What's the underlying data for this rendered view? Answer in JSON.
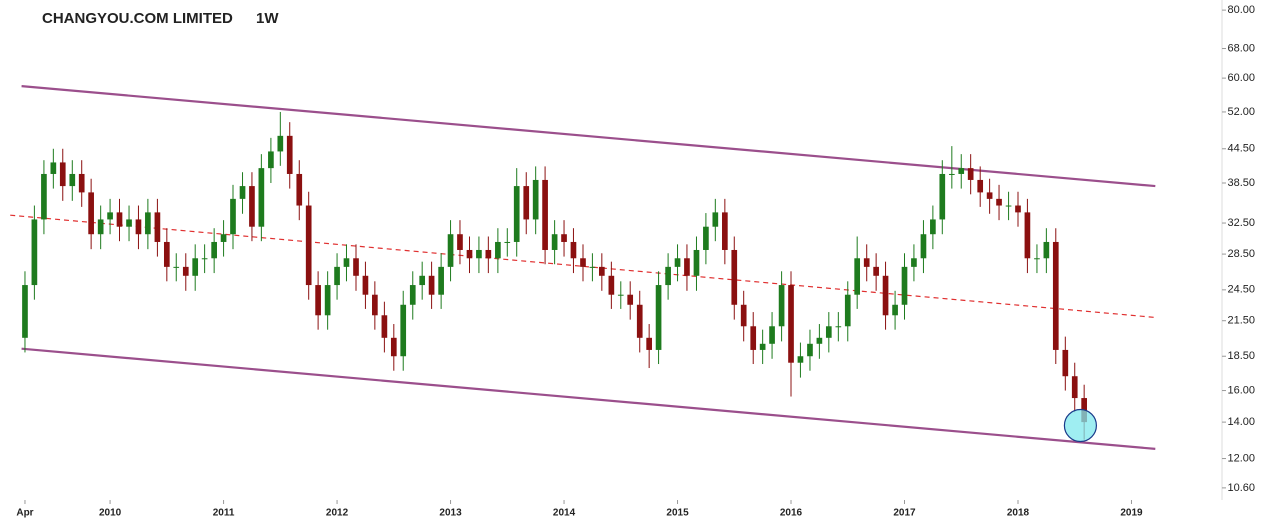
{
  "chart_data": {
    "type": "candlestick",
    "title": "CHANGYOU.COM LIMITED",
    "subtitle": "1W",
    "log_scale": true,
    "grid": false,
    "up_color": "#1e7b1e",
    "down_color": "#8b1010",
    "xlim": [
      2009.03,
      2019.78
    ],
    "xticks": [
      {
        "value": 2009.25,
        "label": "Apr"
      },
      2010,
      2011,
      2012,
      2013,
      2014,
      2015,
      2016,
      2017,
      2018,
      2019
    ],
    "ylim": [
      10.07,
      83.5
    ],
    "yticks": [
      {
        "value": 10.6,
        "label": "10.60"
      },
      {
        "value": 12,
        "label": "12.00"
      },
      {
        "value": 14,
        "label": "14.00"
      },
      {
        "value": 16,
        "label": "16.00"
      },
      {
        "value": 18.5,
        "label": "18.50"
      },
      {
        "value": 21.5,
        "label": "21.50"
      },
      {
        "value": 24.5,
        "label": "24.50"
      },
      {
        "value": 28.5,
        "label": "28.50"
      },
      {
        "value": 32.5,
        "label": "32.50"
      },
      {
        "value": 38.5,
        "label": "38.50"
      },
      {
        "value": 44.5,
        "label": "44.50"
      },
      {
        "value": 52,
        "label": "52.00"
      },
      {
        "value": 60,
        "label": "60.00"
      },
      {
        "value": 68,
        "label": "68.00"
      },
      {
        "value": 80,
        "label": "80.00"
      }
    ],
    "x": [
      2009.25,
      2009.333,
      2009.417,
      2009.5,
      2009.583,
      2009.667,
      2009.75,
      2009.833,
      2009.917,
      2010,
      2010.083,
      2010.167,
      2010.25,
      2010.333,
      2010.417,
      2010.5,
      2010.583,
      2010.667,
      2010.75,
      2010.833,
      2010.917,
      2011,
      2011.083,
      2011.167,
      2011.25,
      2011.333,
      2011.417,
      2011.5,
      2011.583,
      2011.667,
      2011.75,
      2011.833,
      2011.917,
      2012,
      2012.083,
      2012.167,
      2012.25,
      2012.333,
      2012.417,
      2012.5,
      2012.583,
      2012.667,
      2012.75,
      2012.833,
      2012.917,
      2013,
      2013.083,
      2013.167,
      2013.25,
      2013.333,
      2013.417,
      2013.5,
      2013.583,
      2013.667,
      2013.75,
      2013.833,
      2013.917,
      2014,
      2014.083,
      2014.167,
      2014.25,
      2014.333,
      2014.417,
      2014.5,
      2014.583,
      2014.667,
      2014.75,
      2014.833,
      2014.917,
      2015,
      2015.083,
      2015.167,
      2015.25,
      2015.333,
      2015.417,
      2015.5,
      2015.583,
      2015.667,
      2015.75,
      2015.833,
      2015.917,
      2016,
      2016.083,
      2016.167,
      2016.25,
      2016.333,
      2016.417,
      2016.5,
      2016.583,
      2016.667,
      2016.75,
      2016.833,
      2016.917,
      2017,
      2017.083,
      2017.167,
      2017.25,
      2017.333,
      2017.417,
      2017.5,
      2017.583,
      2017.667,
      2017.75,
      2017.833,
      2017.917,
      2018,
      2018.083,
      2018.167,
      2018.25,
      2018.333,
      2018.417,
      2018.5,
      2018.583
    ],
    "open": [
      20,
      25,
      33,
      40,
      42,
      38,
      40,
      37,
      31,
      33,
      34,
      32,
      33,
      31,
      34,
      30,
      27,
      27,
      26,
      28,
      28,
      30,
      31,
      36,
      38,
      32,
      41,
      44,
      47,
      40,
      35,
      25,
      22,
      25,
      27,
      28,
      26,
      24,
      22,
      20,
      18.5,
      23,
      25,
      26,
      24,
      27,
      31,
      29,
      28,
      29,
      28,
      30,
      30,
      38,
      33,
      39,
      29,
      31,
      30,
      28,
      27,
      27,
      26,
      24,
      24,
      23,
      20,
      19,
      25,
      27,
      28,
      26,
      29,
      32,
      34,
      29,
      23,
      21,
      19,
      19.5,
      21,
      25,
      18,
      18.5,
      19.5,
      20,
      21,
      21,
      24,
      28,
      27,
      26,
      22,
      23,
      27,
      28,
      31,
      33,
      40,
      40,
      41,
      39,
      37,
      36,
      35,
      35,
      34,
      28,
      28,
      30,
      19,
      17,
      15.5
    ],
    "high": [
      26.5,
      35,
      42.4,
      44.5,
      44.5,
      42.4,
      42.4,
      39.2,
      35,
      36,
      36,
      35,
      35,
      36,
      36,
      31.8,
      28.6,
      28.6,
      29.7,
      29.7,
      31.8,
      32.9,
      38.2,
      40.3,
      40.3,
      43.5,
      46.6,
      52,
      49.8,
      42.4,
      37.1,
      26.5,
      26.5,
      28.6,
      29.7,
      29.7,
      27.6,
      25.4,
      23.3,
      21.2,
      24.4,
      26.5,
      27.6,
      27.6,
      28.6,
      32.9,
      32.9,
      30.7,
      30.7,
      30.7,
      31.8,
      31.8,
      41,
      40.3,
      41.3,
      41.3,
      32.9,
      32.9,
      31.8,
      29.7,
      28.6,
      28.6,
      27.6,
      25.4,
      25.4,
      24.4,
      21.2,
      26.5,
      28.6,
      29.7,
      29.7,
      30.7,
      33.9,
      36,
      36,
      30.7,
      24.4,
      22.3,
      20.7,
      22.3,
      26.5,
      26.5,
      19.6,
      20.7,
      21.2,
      22.3,
      22.3,
      25.4,
      30.7,
      29.7,
      28.6,
      27.6,
      24.4,
      28.6,
      29.7,
      32.9,
      35,
      42.4,
      45,
      43.5,
      43.5,
      41.3,
      39.2,
      38.2,
      37.1,
      37.1,
      36,
      29.7,
      31.8,
      31.8,
      20.1,
      18,
      16.4
    ],
    "low": [
      18.8,
      23.5,
      31,
      37.6,
      35.7,
      35.7,
      34.8,
      29.1,
      29.1,
      31,
      30.1,
      30.1,
      29.1,
      29.1,
      28.2,
      25.4,
      25.4,
      24.4,
      24.4,
      26.3,
      26.3,
      28.2,
      29.1,
      33.8,
      30.1,
      30.1,
      38.5,
      41.4,
      37.6,
      32.9,
      23.5,
      20.7,
      20.7,
      23.5,
      25.4,
      24.4,
      22.6,
      20.7,
      18.8,
      17.4,
      17.4,
      21.6,
      23.5,
      22.6,
      22.6,
      25.4,
      27.3,
      26.3,
      26.3,
      26.3,
      26.3,
      28.2,
      28.2,
      31,
      31,
      27.3,
      27.3,
      28.2,
      26.3,
      25.4,
      25.4,
      24.4,
      22.6,
      22.6,
      21.6,
      18.8,
      17.6,
      17.9,
      23.5,
      25.4,
      24.4,
      24.4,
      27.3,
      30.1,
      27.3,
      21.6,
      19.7,
      17.9,
      17.9,
      18.3,
      19.7,
      15.6,
      16.9,
      17.4,
      18.3,
      18.8,
      19.7,
      19.7,
      22.6,
      25.4,
      24.4,
      20.7,
      20.7,
      21.6,
      25.4,
      26.3,
      29.1,
      31,
      37.6,
      37.6,
      36.7,
      34.8,
      33.8,
      32.9,
      32.9,
      32,
      26.3,
      26.3,
      26.3,
      17.9,
      16,
      14.6,
      13
    ],
    "close": [
      25,
      33,
      40,
      42,
      38,
      40,
      37,
      31,
      33,
      34,
      32,
      33,
      31,
      34,
      30,
      27,
      27,
      26,
      28,
      28,
      30,
      31,
      36,
      38,
      32,
      41,
      44,
      47,
      40,
      35,
      25,
      22,
      25,
      27,
      28,
      26,
      24,
      22,
      20,
      18.5,
      23,
      25,
      26,
      24,
      27,
      31,
      29,
      28,
      29,
      28,
      30,
      30,
      38,
      33,
      39,
      29,
      31,
      30,
      28,
      27,
      27,
      26,
      24,
      24,
      23,
      20,
      19,
      25,
      27,
      28,
      26,
      29,
      32,
      34,
      29,
      23,
      21,
      19,
      19.5,
      21,
      25,
      18,
      18.5,
      19.5,
      20,
      21,
      21,
      24,
      28,
      27,
      26,
      22,
      23,
      27,
      28,
      31,
      33,
      40,
      40,
      41,
      39,
      37,
      36,
      35,
      35,
      34,
      28,
      28,
      30,
      19,
      17,
      15.5,
      14
    ],
    "trendlines": [
      {
        "color": "#9b4f8c",
        "style": "solid",
        "x": [
          2009.22,
          2019.21
        ],
        "y": [
          58.0,
          38.0
        ]
      },
      {
        "color": "#9b4f8c",
        "style": "solid",
        "x": [
          2009.22,
          2019.21
        ],
        "y": [
          19.1,
          12.5
        ]
      },
      {
        "color": "#e03030",
        "style": "dashed",
        "x": [
          2009.12,
          2019.21
        ],
        "y": [
          33.6,
          21.8
        ]
      }
    ],
    "highlight": {
      "x": 2018.55,
      "y": 13.8,
      "color": "#7fe8ee"
    }
  }
}
